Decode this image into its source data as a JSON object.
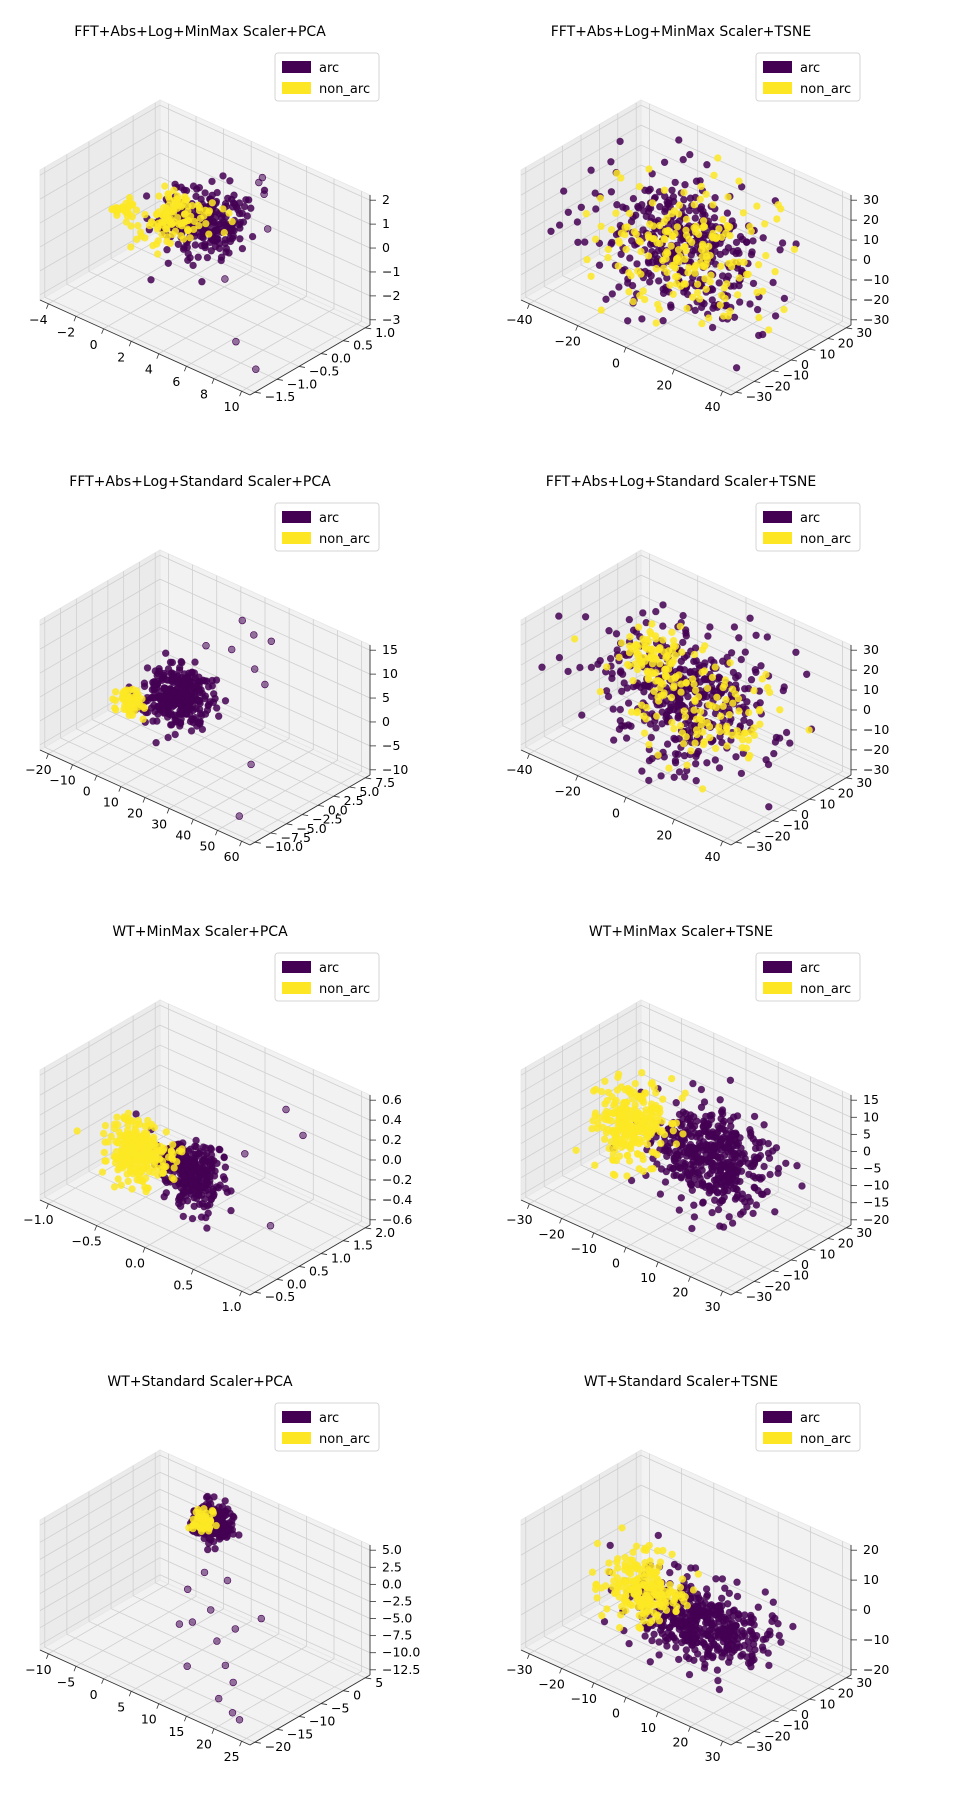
{
  "colors": {
    "arc": "#440154",
    "non_arc": "#fde725",
    "pane": "#f2f2f2",
    "grid": "#cfcfcf"
  },
  "chart_data": [
    {
      "type": "scatter",
      "title": "FFT+Abs+Log+MinMax Scaler+PCA",
      "legend": {
        "entries": [
          "arc",
          "non_arc"
        ],
        "placement": "top-right"
      },
      "x_ticks": [
        "−4",
        "−2",
        "0",
        "2",
        "4",
        "6",
        "8",
        "10"
      ],
      "y_ticks": [
        "−1.5",
        "−1.0",
        "−0.5",
        "0.0",
        "0.5",
        "1.0"
      ],
      "z_ticks": [
        "−3",
        "−2",
        "−1",
        "0",
        "1",
        "2"
      ],
      "xlim": [
        -4,
        10
      ],
      "ylim": [
        -1.5,
        1.0
      ],
      "zlim": [
        -3,
        2
      ],
      "series": [
        {
          "name": "arc",
          "clusters": [
            {
              "cx": 1.8,
              "cy": 0.1,
              "cz": -0.2,
              "sx": 1.3,
              "sy": 0.35,
              "sz": 0.55,
              "n": 260
            }
          ],
          "outliers": [
            [
              4.5,
              0.5,
              1.8
            ],
            [
              5.2,
              0.4,
              1.6
            ],
            [
              3.8,
              0.8,
              1.5
            ],
            [
              6.1,
              0.2,
              0.6
            ],
            [
              7.0,
              -0.8,
              -2.8
            ],
            [
              9.4,
              -1.1,
              -3.0
            ],
            [
              3.0,
              0.2,
              -2.3
            ]
          ]
        },
        {
          "name": "non_arc",
          "clusters": [
            {
              "cx": 0.2,
              "cy": -0.1,
              "cz": -0.1,
              "sx": 1.0,
              "sy": 0.3,
              "sz": 0.35,
              "n": 120
            },
            {
              "cx": -2.8,
              "cy": -0.3,
              "cz": -0.3,
              "sx": 0.3,
              "sy": 0.1,
              "sz": 0.1,
              "n": 25
            }
          ]
        }
      ]
    },
    {
      "type": "scatter",
      "title": "FFT+Abs+Log+MinMax Scaler+TSNE",
      "legend": {
        "entries": [
          "arc",
          "non_arc"
        ],
        "placement": "top-right"
      },
      "x_ticks": [
        "−40",
        "−20",
        "0",
        "20",
        "40"
      ],
      "y_ticks": [
        "−30",
        "−20",
        "−10",
        "0",
        "10",
        "20",
        "30"
      ],
      "z_ticks": [
        "−30",
        "−20",
        "−10",
        "0",
        "10",
        "20",
        "30"
      ],
      "xlim": [
        -50,
        50
      ],
      "ylim": [
        -35,
        35
      ],
      "zlim": [
        -38,
        38
      ],
      "series": [
        {
          "name": "arc",
          "clusters": [
            {
              "cx": 0,
              "cy": 0,
              "cz": 0,
              "sx": 20,
              "sy": 15,
              "sz": 17,
              "n": 380
            }
          ]
        },
        {
          "name": "non_arc",
          "clusters": [
            {
              "cx": 0,
              "cy": 0,
              "cz": 0,
              "sx": 19,
              "sy": 15,
              "sz": 16,
              "n": 200
            }
          ]
        }
      ]
    },
    {
      "type": "scatter",
      "title": "FFT+Abs+Log+Standard Scaler+PCA",
      "legend": {
        "entries": [
          "arc",
          "non_arc"
        ],
        "placement": "top-right"
      },
      "x_ticks": [
        "−20",
        "−10",
        "0",
        "10",
        "20",
        "30",
        "40",
        "50",
        "60"
      ],
      "y_ticks": [
        "−10.0",
        "−7.5",
        "−5.0",
        "−2.5",
        "0.0",
        "2.5",
        "5.0",
        "7.5"
      ],
      "z_ticks": [
        "−10",
        "−5",
        "0",
        "5",
        "10",
        "15"
      ],
      "xlim": [
        -22,
        62
      ],
      "ylim": [
        -10.5,
        8
      ],
      "zlim": [
        -10,
        16
      ],
      "series": [
        {
          "name": "arc",
          "clusters": [
            {
              "cx": 5,
              "cy": 0,
              "cz": -1,
              "sx": 6,
              "sy": 1.8,
              "sz": 2.8,
              "n": 320
            }
          ],
          "outliers": [
            [
              20,
              5,
              15
            ],
            [
              25,
              5,
              13
            ],
            [
              30,
              6,
              12
            ],
            [
              18,
              4,
              9
            ],
            [
              28,
              4,
              7
            ],
            [
              35,
              3,
              6
            ],
            [
              42,
              -2,
              -6
            ],
            [
              55,
              -9,
              -9
            ],
            [
              12,
              2,
              10
            ]
          ]
        },
        {
          "name": "non_arc",
          "clusters": [
            {
              "cx": -10,
              "cy": -2,
              "cz": -4,
              "sx": 2.5,
              "sy": 0.8,
              "sz": 1.0,
              "n": 60
            }
          ]
        }
      ]
    },
    {
      "type": "scatter",
      "title": "FFT+Abs+Log+Standard Scaler+TSNE",
      "legend": {
        "entries": [
          "arc",
          "non_arc"
        ],
        "placement": "top-right"
      },
      "x_ticks": [
        "−40",
        "−20",
        "0",
        "20",
        "40"
      ],
      "y_ticks": [
        "−30",
        "−20",
        "−10",
        "0",
        "10",
        "20",
        "30"
      ],
      "z_ticks": [
        "−30",
        "−20",
        "−10",
        "0",
        "10",
        "20",
        "30"
      ],
      "xlim": [
        -50,
        50
      ],
      "ylim": [
        -35,
        35
      ],
      "zlim": [
        -38,
        38
      ],
      "series": [
        {
          "name": "arc",
          "clusters": [
            {
              "cx": 0,
              "cy": 0,
              "cz": 0,
              "sx": 20,
              "sy": 15,
              "sz": 17,
              "n": 420
            }
          ]
        },
        {
          "name": "non_arc",
          "clusters": [
            {
              "cx": -20,
              "cy": 5,
              "cz": 10,
              "sx": 7,
              "sy": 6,
              "sz": 8,
              "n": 90
            },
            {
              "cx": 5,
              "cy": 0,
              "cz": -5,
              "sx": 17,
              "sy": 12,
              "sz": 13,
              "n": 120
            }
          ]
        }
      ]
    },
    {
      "type": "scatter",
      "title": "WT+MinMax Scaler+PCA",
      "legend": {
        "entries": [
          "arc",
          "non_arc"
        ],
        "placement": "top-right"
      },
      "x_ticks": [
        "−1.0",
        "−0.5",
        "0.0",
        "0.5",
        "1.0"
      ],
      "y_ticks": [
        "−0.5",
        "0.0",
        "0.5",
        "1.0",
        "1.5",
        "2.0"
      ],
      "z_ticks": [
        "−0.6",
        "−0.4",
        "−0.2",
        "0.0",
        "0.2",
        "0.4",
        "0.6"
      ],
      "xlim": [
        -1.1,
        1.2
      ],
      "ylim": [
        -0.6,
        2.1
      ],
      "zlim": [
        -0.62,
        0.62
      ],
      "series": [
        {
          "name": "arc",
          "clusters": [
            {
              "cx": 0.25,
              "cy": 0.0,
              "cz": 0.0,
              "sx": 0.18,
              "sy": 0.15,
              "sz": 0.14,
              "n": 320
            }
          ],
          "outliers": [
            [
              0.6,
              1.6,
              0.4
            ],
            [
              0.9,
              1.4,
              0.3
            ],
            [
              1.0,
              0.4,
              -0.35
            ],
            [
              0.5,
              0.8,
              0.1
            ]
          ]
        },
        {
          "name": "non_arc",
          "clusters": [
            {
              "cx": -0.3,
              "cy": -0.1,
              "cz": 0.0,
              "sx": 0.18,
              "sy": 0.15,
              "sz": 0.14,
              "n": 260
            }
          ]
        }
      ]
    },
    {
      "type": "scatter",
      "title": "WT+MinMax Scaler+TSNE",
      "legend": {
        "entries": [
          "arc",
          "non_arc"
        ],
        "placement": "top-right"
      },
      "x_ticks": [
        "−30",
        "−20",
        "−10",
        "0",
        "10",
        "20",
        "30"
      ],
      "y_ticks": [
        "−30",
        "−20",
        "−10",
        "0",
        "10",
        "20",
        "30"
      ],
      "z_ticks": [
        "−20",
        "−15",
        "−10",
        "−5",
        "0",
        "5",
        "10",
        "15"
      ],
      "xlim": [
        -35,
        35
      ],
      "ylim": [
        -35,
        35
      ],
      "zlim": [
        -20,
        18
      ],
      "series": [
        {
          "name": "arc",
          "clusters": [
            {
              "cx": 8,
              "cy": 2,
              "cz": -1,
              "sx": 9,
              "sy": 9,
              "sz": 6,
              "n": 460
            }
          ]
        },
        {
          "name": "non_arc",
          "clusters": [
            {
              "cx": -18,
              "cy": -3,
              "cz": 1,
              "sx": 4.5,
              "sy": 8,
              "sz": 6,
              "n": 260
            }
          ]
        }
      ]
    },
    {
      "type": "scatter",
      "title": "WT+Standard Scaler+PCA",
      "legend": {
        "entries": [
          "arc",
          "non_arc"
        ],
        "placement": "top-right"
      },
      "x_ticks": [
        "−10",
        "−5",
        "0",
        "5",
        "10",
        "15",
        "20",
        "25"
      ],
      "y_ticks": [
        "−20",
        "−15",
        "−10",
        "−5",
        "0",
        "5"
      ],
      "z_ticks": [
        "−12.5",
        "−10.0",
        "−7.5",
        "−5.0",
        "−2.5",
        "0.0",
        "2.5",
        "5.0"
      ],
      "xlim": [
        -10,
        26
      ],
      "ylim": [
        -22,
        7
      ],
      "zlim": [
        -14,
        5
      ],
      "series": [
        {
          "name": "arc",
          "clusters": [
            {
              "cx": 2,
              "cy": 3,
              "cz": 1.5,
              "sx": 1.5,
              "sy": 1.2,
              "sz": 1.2,
              "n": 260
            }
          ],
          "outliers": [
            [
              10,
              -15,
              -12
            ],
            [
              18,
              -18,
              -13
            ],
            [
              22,
              -20,
              -13
            ],
            [
              15,
              -12,
              -11
            ],
            [
              6,
              -8,
              -9
            ],
            [
              3,
              -5,
              -6
            ],
            [
              12,
              -10,
              -9
            ],
            [
              8,
              -6,
              -7
            ],
            [
              20,
              -17,
              -10
            ],
            [
              24,
              -21,
              -13
            ],
            [
              16,
              -4,
              -6
            ],
            [
              4,
              -2,
              -4
            ],
            [
              9,
              -3,
              -3
            ],
            [
              14,
              -8,
              -7
            ],
            [
              5,
              -10,
              -9
            ]
          ]
        },
        {
          "name": "non_arc",
          "clusters": [
            {
              "cx": 0,
              "cy": 3,
              "cz": 1,
              "sx": 1.0,
              "sy": 0.8,
              "sz": 1.0,
              "n": 50
            }
          ]
        }
      ]
    },
    {
      "type": "scatter",
      "title": "WT+Standard Scaler+TSNE",
      "legend": {
        "entries": [
          "arc",
          "non_arc"
        ],
        "placement": "top-right"
      },
      "x_ticks": [
        "−30",
        "−20",
        "−10",
        "0",
        "10",
        "20",
        "30"
      ],
      "y_ticks": [
        "−30",
        "−20",
        "−10",
        "0",
        "10",
        "20",
        "30"
      ],
      "z_ticks": [
        "−20",
        "−10",
        "0",
        "10",
        "20"
      ],
      "xlim": [
        -35,
        35
      ],
      "ylim": [
        -35,
        35
      ],
      "zlim": [
        -22,
        28
      ],
      "series": [
        {
          "name": "arc",
          "clusters": [
            {
              "cx": 5,
              "cy": 0,
              "cz": -5,
              "sx": 11,
              "sy": 10,
              "sz": 6,
              "n": 460
            }
          ]
        },
        {
          "name": "non_arc",
          "clusters": [
            {
              "cx": -18,
              "cy": 5,
              "cz": -5,
              "sx": 6,
              "sy": 8,
              "sz": 5,
              "n": 220
            }
          ]
        }
      ]
    }
  ]
}
